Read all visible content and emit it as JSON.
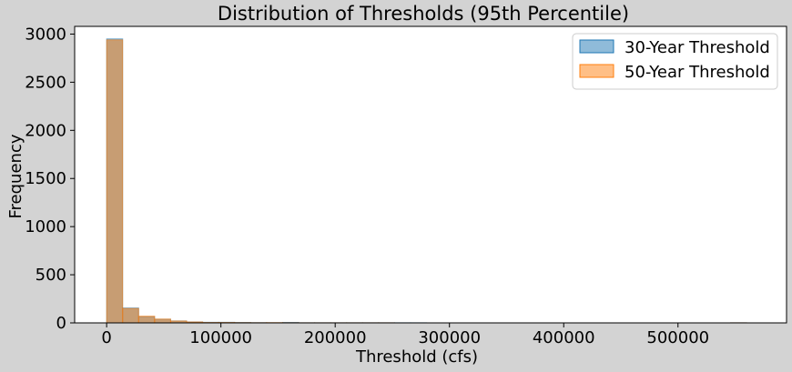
{
  "chart_data": {
    "type": "bar",
    "title": "Distribution of Thresholds (95th Percentile)",
    "xlabel": "Threshold (cfs)",
    "ylabel": "Frequency",
    "xlim": [
      -28000,
      595000
    ],
    "ylim": [
      0,
      3080
    ],
    "xticks": [
      0,
      100000,
      200000,
      300000,
      400000,
      500000
    ],
    "xtick_labels": [
      "0",
      "100000",
      "200000",
      "300000",
      "400000",
      "500000"
    ],
    "yticks": [
      0,
      500,
      1000,
      1500,
      2000,
      2500,
      3000
    ],
    "ytick_labels": [
      "0",
      "500",
      "1000",
      "1500",
      "2000",
      "2500",
      "3000"
    ],
    "grid": false,
    "legend_position": "top-right",
    "bin_edges": [
      0,
      14000,
      28000,
      42000,
      56000,
      70000,
      84000,
      98000,
      112000,
      126000,
      140000,
      154000,
      168000,
      182000,
      196000,
      210000,
      224000,
      238000,
      252000,
      266000,
      280000,
      294000,
      308000,
      322000,
      336000,
      350000,
      364000,
      378000,
      392000,
      406000,
      420000,
      434000,
      448000,
      462000,
      476000,
      490000,
      504000,
      518000,
      532000,
      546000,
      560000
    ],
    "series": [
      {
        "name": "30-Year Threshold",
        "color": "#1f77b4",
        "values": [
          2950,
          155,
          65,
          38,
          20,
          10,
          6,
          6,
          4,
          2,
          1,
          5,
          1,
          1,
          1,
          1,
          1,
          1,
          1,
          1,
          0,
          0,
          0,
          0,
          0,
          0,
          0,
          0,
          0,
          0,
          0,
          0,
          0,
          0,
          0,
          0,
          0,
          0,
          0,
          1
        ]
      },
      {
        "name": "50-Year Threshold",
        "color": "#ff7f0e",
        "values": [
          2940,
          150,
          70,
          40,
          20,
          10,
          5,
          5,
          3,
          2,
          3,
          2,
          1,
          1,
          1,
          1,
          1,
          1,
          0,
          0,
          0,
          0,
          0,
          0,
          0,
          0,
          0,
          0,
          0,
          0,
          0,
          0,
          0,
          0,
          0,
          0,
          0,
          0,
          0,
          1
        ]
      }
    ]
  }
}
